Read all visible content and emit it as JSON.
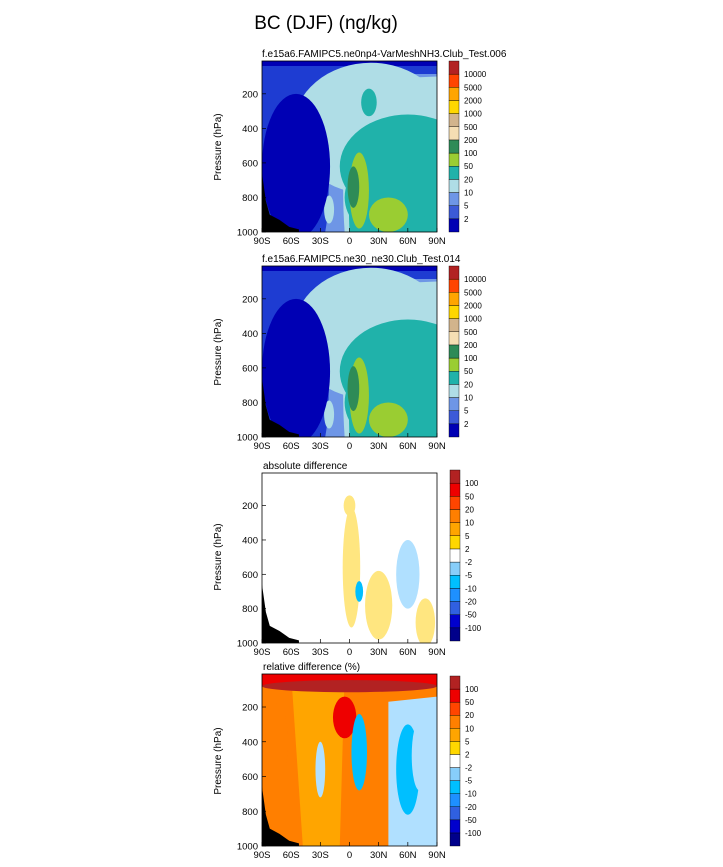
{
  "title": "BC (DJF) (ng/kg)",
  "colors": {
    "test_levels": [
      "#0000b4",
      "#1e3cd2",
      "#4169e1",
      "#6e96e6",
      "#afdde6",
      "#20b2aa",
      "#2e8b57",
      "#9acd32",
      "#8fbc8f",
      "#d2b48c",
      "#f5deb3",
      "#f0d75a",
      "#ffd700",
      "#ffa500",
      "#ff8c00",
      "#ff4500",
      "#dc143c"
    ],
    "diff_levels": [
      "#00008b",
      "#0000cd",
      "#1e64ff",
      "#1e90ff",
      "#00bfff",
      "#87cefa",
      "#b0e0ff",
      "#ffffff",
      "#ffffff",
      "#ffe680",
      "#ffd700",
      "#ffa500",
      "#ff7f00",
      "#ff4500",
      "#ee0000",
      "#b22222"
    ],
    "terrain": "#000000"
  },
  "chart_data": [
    {
      "type": "heatmap",
      "title": "f.e15a6.FAMIPC5.ne0np4-VarMeshNH3.Club_Test.006",
      "xlabel": "",
      "ylabel": "Pressure (hPa)",
      "xticks": [
        "90S",
        "60S",
        "30S",
        "0",
        "30N",
        "60N",
        "90N"
      ],
      "yticks": [
        "200",
        "400",
        "600",
        "800",
        "1000"
      ],
      "xlim": [
        -90,
        90
      ],
      "ylim": [
        1000,
        10
      ],
      "colorbar_labels": [
        "2",
        "5",
        "10",
        "20",
        "50",
        "100",
        "200",
        "500",
        "1000",
        "2000",
        "5000",
        "10000"
      ],
      "regions": [
        {
          "lat": 22,
          "p": 400,
          "rx": 80,
          "rp": 380,
          "level": 4
        },
        {
          "lat": 20,
          "p": 250,
          "rx": 8,
          "rp": 80,
          "level": 5
        },
        {
          "lat": 60,
          "p": 620,
          "rx": 70,
          "rp": 300,
          "level": 5
        },
        {
          "lat": 35,
          "p": 800,
          "rx": 40,
          "rp": 220,
          "level": 5
        },
        {
          "lat": 10,
          "p": 760,
          "rx": 10,
          "rp": 220,
          "level": 7
        },
        {
          "lat": 4,
          "p": 740,
          "rx": 6,
          "rp": 120,
          "level": 6
        },
        {
          "lat": 40,
          "p": 900,
          "rx": 20,
          "rp": 100,
          "level": 7
        },
        {
          "lat": -55,
          "p": 620,
          "rx": 35,
          "rp": 420,
          "level": 0
        }
      ]
    },
    {
      "type": "heatmap",
      "title": "f.e15a6.FAMIPC5.ne30_ne30.Club_Test.014",
      "xlabel": "",
      "ylabel": "Pressure (hPa)",
      "xticks": [
        "90S",
        "60S",
        "30S",
        "0",
        "30N",
        "60N",
        "90N"
      ],
      "yticks": [
        "200",
        "400",
        "600",
        "800",
        "1000"
      ],
      "xlim": [
        -90,
        90
      ],
      "ylim": [
        1000,
        10
      ],
      "colorbar_labels": [
        "2",
        "5",
        "10",
        "20",
        "50",
        "100",
        "200",
        "500",
        "1000",
        "2000",
        "5000",
        "10000"
      ],
      "regions": [
        {
          "lat": 22,
          "p": 400,
          "rx": 80,
          "rp": 380,
          "level": 4
        },
        {
          "lat": 60,
          "p": 620,
          "rx": 70,
          "rp": 300,
          "level": 5
        },
        {
          "lat": 35,
          "p": 800,
          "rx": 40,
          "rp": 220,
          "level": 5
        },
        {
          "lat": 10,
          "p": 760,
          "rx": 10,
          "rp": 220,
          "level": 7
        },
        {
          "lat": 4,
          "p": 720,
          "rx": 6,
          "rp": 130,
          "level": 6
        },
        {
          "lat": 40,
          "p": 900,
          "rx": 20,
          "rp": 100,
          "level": 7
        },
        {
          "lat": -55,
          "p": 620,
          "rx": 35,
          "rp": 420,
          "level": 0
        }
      ]
    },
    {
      "type": "heatmap",
      "title": "absolute difference",
      "xlabel": "",
      "ylabel": "Pressure (hPa)",
      "xticks": [
        "90S",
        "60S",
        "30S",
        "0",
        "30N",
        "60N",
        "90N"
      ],
      "yticks": [
        "200",
        "400",
        "600",
        "800",
        "1000"
      ],
      "xlim": [
        -90,
        90
      ],
      "ylim": [
        1000,
        10
      ],
      "colorbar_labels": [
        "-100",
        "-50",
        "-20",
        "-10",
        "-5",
        "-2",
        "2",
        "5",
        "10",
        "20",
        "50",
        "100"
      ],
      "regions": [
        {
          "lat": 0,
          "p": 200,
          "rx": 6,
          "rp": 60,
          "level": 9
        },
        {
          "lat": 2,
          "p": 560,
          "rx": 9,
          "rp": 350,
          "level": 9
        },
        {
          "lat": 60,
          "p": 600,
          "rx": 12,
          "rp": 200,
          "level": 6
        },
        {
          "lat": 30,
          "p": 780,
          "rx": 14,
          "rp": 200,
          "level": 9
        },
        {
          "lat": 78,
          "p": 880,
          "rx": 10,
          "rp": 140,
          "level": 9
        },
        {
          "lat": 10,
          "p": 700,
          "rx": 4,
          "rp": 60,
          "level": 4
        }
      ]
    },
    {
      "type": "heatmap",
      "title": "relative difference (%)",
      "xlabel": "",
      "ylabel": "Pressure (hPa)",
      "xticks": [
        "90S",
        "60S",
        "30S",
        "0",
        "30N",
        "60N",
        "90N"
      ],
      "yticks": [
        "200",
        "400",
        "600",
        "800",
        "1000"
      ],
      "xlim": [
        -90,
        90
      ],
      "ylim": [
        1000,
        10
      ],
      "colorbar_labels": [
        "-100",
        "-50",
        "-20",
        "-10",
        "-5",
        "-2",
        "2",
        "5",
        "10",
        "20",
        "50",
        "100"
      ],
      "regions": [
        {
          "lat": -5,
          "p": 260,
          "rx": 12,
          "rp": 120,
          "level": 14
        },
        {
          "lat": 10,
          "p": 460,
          "rx": 8,
          "rp": 220,
          "level": 4
        },
        {
          "lat": 60,
          "p": 560,
          "rx": 12,
          "rp": 260,
          "level": 4
        },
        {
          "lat": 72,
          "p": 480,
          "rx": 8,
          "rp": 200,
          "level": 6
        },
        {
          "lat": -30,
          "p": 560,
          "rx": 5,
          "rp": 160,
          "level": 6
        },
        {
          "lat": 0,
          "p": 80,
          "rx": 90,
          "rp": 35,
          "level": 15
        },
        {
          "lat": -75,
          "p": 400,
          "rx": 12,
          "rp": 220,
          "level": 12
        }
      ]
    }
  ]
}
